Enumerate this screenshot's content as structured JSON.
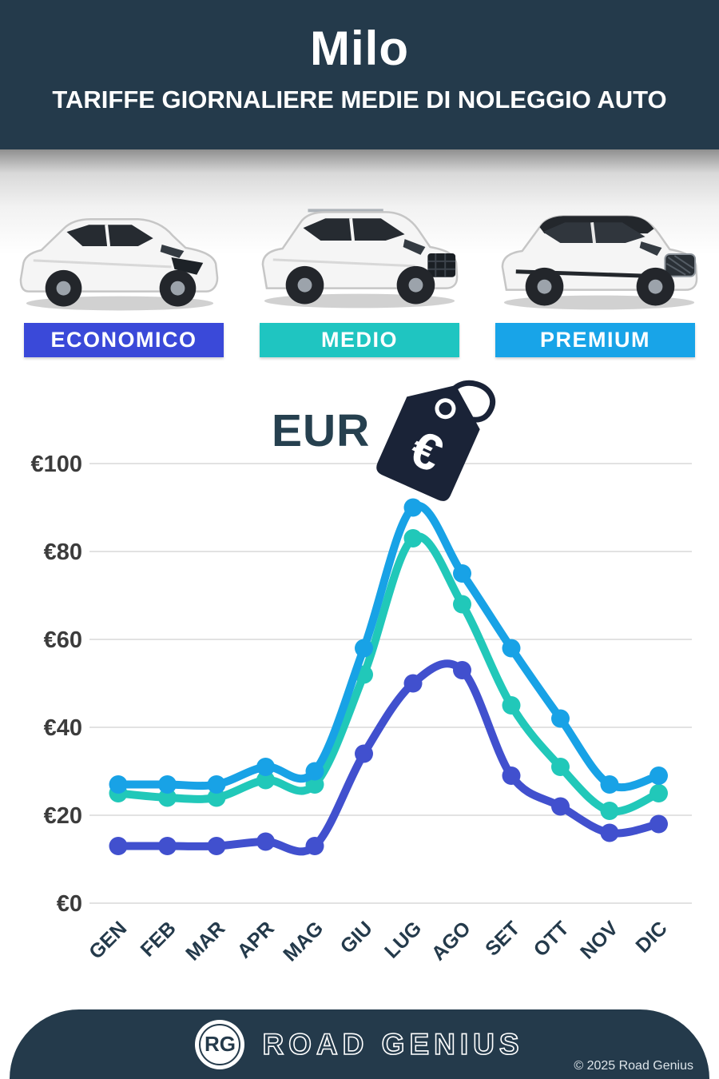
{
  "header": {
    "title": "Milo",
    "subtitle": "TARIFFE GIORNALIERE MEDIE DI NOLEGGIO AUTO"
  },
  "theme": {
    "header_bg": "#243A4B",
    "tag_color": "#1A2337",
    "grid_color": "#E2E2E2",
    "axis_text_color": "#3C3C3C",
    "month_text_color": "#243A4B"
  },
  "categories": [
    {
      "label": "ECONOMICO",
      "color": "#3A49D9"
    },
    {
      "label": "MEDIO",
      "color": "#1FC5C1"
    },
    {
      "label": "PREMIUM",
      "color": "#18A4E8"
    }
  ],
  "currency_label": "EUR",
  "currency_symbol": "€",
  "chart_data": {
    "type": "line",
    "title": "Tariffe giornaliere medie di noleggio auto (EUR)",
    "categories": [
      "GEN",
      "FEB",
      "MAR",
      "APR",
      "MAG",
      "GIU",
      "LUG",
      "AGO",
      "SET",
      "OTT",
      "NOV",
      "DIC"
    ],
    "series": [
      {
        "name": "MEDIO",
        "color": "#21C8B9",
        "values": [
          25,
          24,
          24,
          28,
          27,
          52,
          83,
          68,
          45,
          31,
          21,
          25
        ]
      },
      {
        "name": "PREMIUM",
        "color": "#18A2E6",
        "values": [
          27,
          27,
          27,
          31,
          30,
          58,
          90,
          75,
          58,
          42,
          27,
          29
        ]
      },
      {
        "name": "ECONOMICO",
        "color": "#4150CE",
        "values": [
          13,
          13,
          13,
          14,
          13,
          34,
          50,
          53,
          29,
          22,
          16,
          18
        ]
      }
    ],
    "ylabel_prefix": "€",
    "yticks": [
      0,
      20,
      40,
      60,
      80,
      100
    ],
    "ylim": [
      0,
      100
    ],
    "grid": true,
    "legend_position": "badges-above-chart"
  },
  "footer": {
    "logo_initials": "RG",
    "brand": "ROAD GENIUS",
    "copyright": "© 2025 Road Genius"
  }
}
